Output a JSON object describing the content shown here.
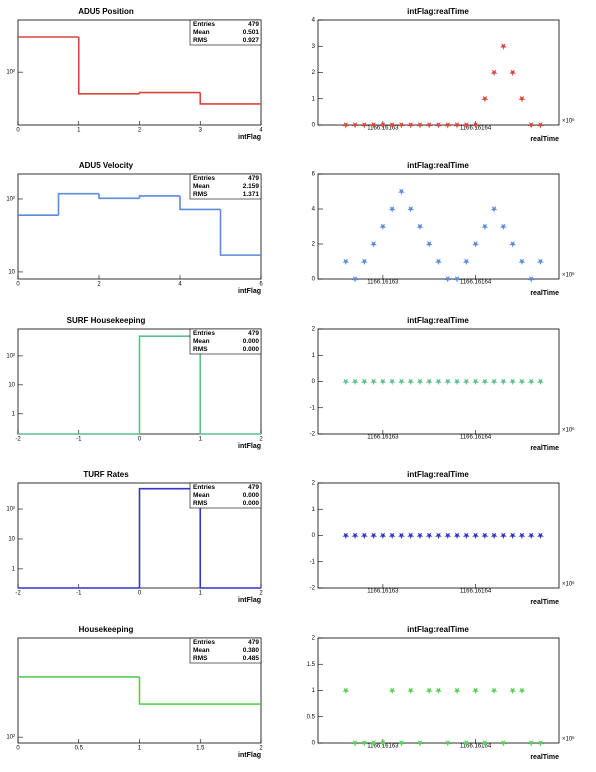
{
  "chart_data": [
    {
      "type": "histogram",
      "title": "ADU5 Position",
      "x_label": "intFlag",
      "bins": [
        0,
        1,
        2,
        3,
        4
      ],
      "values": [
        353,
        46,
        48,
        32
      ],
      "color": "#d9453d",
      "xlim": [
        0,
        4
      ],
      "xticks": [
        0,
        1,
        2,
        3,
        4
      ],
      "log_y": true,
      "ylim": [
        15,
        650
      ],
      "yticks": [
        {
          "value": 100,
          "label": "10²"
        }
      ],
      "stats": {
        "labels": [
          "Entries",
          "Mean",
          "RMS"
        ],
        "values": [
          479,
          0.501,
          0.927
        ]
      }
    },
    {
      "type": "scatter",
      "title": "intFlag:realTime",
      "x_label": "realTime",
      "x_exponent": "×10⁶",
      "color": "#d9453d",
      "x": [
        1166.161626,
        1166.161627,
        1166.161628,
        1166.161629,
        1166.16163,
        1166.161631,
        1166.161632,
        1166.161633,
        1166.161634,
        1166.161635,
        1166.161636,
        1166.161637,
        1166.161638,
        1166.161639,
        1166.16164,
        1166.161641,
        1166.161642,
        1166.161643,
        1166.161644,
        1166.161645,
        1166.161646,
        1166.161647
      ],
      "values": [
        0,
        0,
        0,
        0,
        0,
        0,
        0,
        0,
        0,
        0,
        0,
        0,
        0,
        0,
        0,
        1,
        2,
        3,
        2,
        1,
        0,
        0
      ],
      "xlim": [
        1166.161623,
        1166.161649
      ],
      "xticks": [
        1166.16163,
        1166.16164
      ],
      "ylim": [
        0,
        4
      ],
      "yticks": [
        0,
        1,
        2,
        3,
        4
      ]
    },
    {
      "type": "histogram",
      "title": "ADU5 Velocity",
      "x_label": "intFlag",
      "bins": [
        0,
        1,
        2,
        3,
        4,
        5,
        6
      ],
      "values": [
        60,
        118,
        102,
        110,
        72,
        17
      ],
      "color": "#5b8bd9",
      "xlim": [
        0,
        6
      ],
      "xticks": [
        0,
        2,
        4,
        6
      ],
      "log_y": true,
      "ylim": [
        8,
        220
      ],
      "yticks": [
        10,
        {
          "value": 100,
          "label": "10²"
        }
      ],
      "stats": {
        "labels": [
          "Entries",
          "Mean",
          "RMS"
        ],
        "values": [
          479,
          2.159,
          1.371
        ]
      }
    },
    {
      "type": "scatter",
      "title": "intFlag:realTime",
      "x_label": "realTime",
      "x_exponent": "×10⁶",
      "color": "#5b8bd9",
      "x": [
        1166.161626,
        1166.161627,
        1166.161628,
        1166.161629,
        1166.16163,
        1166.161631,
        1166.161632,
        1166.161633,
        1166.161634,
        1166.161635,
        1166.161636,
        1166.161637,
        1166.161638,
        1166.161639,
        1166.16164,
        1166.161641,
        1166.161642,
        1166.161643,
        1166.161644,
        1166.161645,
        1166.161646,
        1166.161647
      ],
      "values": [
        1,
        0,
        1,
        2,
        3,
        4,
        5,
        4,
        3,
        2,
        1,
        0,
        0,
        1,
        2,
        3,
        4,
        3,
        2,
        1,
        0,
        1
      ],
      "xlim": [
        1166.161623,
        1166.161649
      ],
      "xticks": [
        1166.16163,
        1166.16164
      ],
      "ylim": [
        0,
        6
      ],
      "yticks": [
        0,
        2,
        4,
        6
      ]
    },
    {
      "type": "histogram",
      "title": "SURF Housekeeping",
      "x_label": "intFlag",
      "bins": [
        -2,
        -1,
        0,
        1,
        2
      ],
      "values": [
        0,
        0,
        479,
        0
      ],
      "color": "#5cc08c",
      "xlim": [
        -2,
        2
      ],
      "xticks": [
        -2,
        -1,
        0,
        1,
        2
      ],
      "log_y": true,
      "ylim": [
        0.2,
        850
      ],
      "yticks": [
        1,
        10,
        {
          "value": 100,
          "label": "10²"
        }
      ],
      "stats": {
        "labels": [
          "Entries",
          "Mean",
          "RMS"
        ],
        "values": [
          479,
          0,
          0
        ],
        "value_labels": [
          "479",
          "0.000",
          "0.000"
        ]
      }
    },
    {
      "type": "scatter",
      "title": "intFlag:realTime",
      "x_label": "realTime",
      "x_exponent": "×10⁶",
      "color": "#5cc08c",
      "x": [
        1166.161626,
        1166.161627,
        1166.161628,
        1166.161629,
        1166.16163,
        1166.161631,
        1166.161632,
        1166.161633,
        1166.161634,
        1166.161635,
        1166.161636,
        1166.161637,
        1166.161638,
        1166.161639,
        1166.16164,
        1166.161641,
        1166.161642,
        1166.161643,
        1166.161644,
        1166.161645,
        1166.161646,
        1166.161647
      ],
      "values": [
        0,
        0,
        0,
        0,
        0,
        0,
        0,
        0,
        0,
        0,
        0,
        0,
        0,
        0,
        0,
        0,
        0,
        0,
        0,
        0,
        0,
        0
      ],
      "xlim": [
        1166.161623,
        1166.161649
      ],
      "xticks": [
        1166.16163,
        1166.16164
      ],
      "ylim": [
        -2,
        2
      ],
      "yticks": [
        -2,
        -1,
        0,
        1,
        2
      ]
    },
    {
      "type": "histogram",
      "title": "TURF Rates",
      "x_label": "intFlag",
      "bins": [
        -2,
        -1,
        0,
        1,
        2
      ],
      "values": [
        0,
        0,
        479,
        0
      ],
      "color": "#3434c8",
      "xlim": [
        -2,
        2
      ],
      "xticks": [
        -2,
        -1,
        0,
        1,
        2
      ],
      "log_y": true,
      "ylim": [
        0.23,
        740
      ],
      "yticks": [
        1,
        10,
        {
          "value": 100,
          "label": "10²"
        }
      ],
      "stats": {
        "labels": [
          "Entries",
          "Mean",
          "RMS"
        ],
        "values": [
          479,
          0,
          0
        ],
        "value_labels": [
          "479",
          "0.000",
          "0.000"
        ]
      }
    },
    {
      "type": "scatter",
      "title": "intFlag:realTime",
      "x_label": "realTime",
      "x_exponent": "×10⁶",
      "color": "#3434c8",
      "x": [
        1166.161626,
        1166.161627,
        1166.161628,
        1166.161629,
        1166.16163,
        1166.161631,
        1166.161632,
        1166.161633,
        1166.161634,
        1166.161635,
        1166.161636,
        1166.161637,
        1166.161638,
        1166.161639,
        1166.16164,
        1166.161641,
        1166.161642,
        1166.161643,
        1166.161644,
        1166.161645,
        1166.161646,
        1166.161647
      ],
      "values": [
        0,
        0,
        0,
        0,
        0,
        0,
        0,
        0,
        0,
        0,
        0,
        0,
        0,
        0,
        0,
        0,
        0,
        0,
        0,
        0,
        0,
        0
      ],
      "xlim": [
        1166.161623,
        1166.161649
      ],
      "xticks": [
        1166.16163,
        1166.16164
      ],
      "ylim": [
        -2,
        2
      ],
      "yticks": [
        -2,
        -1,
        0,
        1,
        2
      ]
    },
    {
      "type": "histogram",
      "title": "Housekeeping",
      "x_label": "intFlag",
      "bins": [
        0,
        1,
        2
      ],
      "values": [
        297,
        182
      ],
      "color": "#55d055",
      "xlim": [
        0,
        2
      ],
      "xticks": [
        0,
        0.5,
        1,
        1.5,
        2
      ],
      "log_y": true,
      "ylim": [
        90,
        600
      ],
      "yticks": [
        {
          "value": 100,
          "label": "10²"
        }
      ],
      "stats": {
        "labels": [
          "Entries",
          "Mean",
          "RMS"
        ],
        "values": [
          479,
          0.38,
          0.485
        ],
        "value_labels": [
          "479",
          "0.380",
          "0.485"
        ]
      }
    },
    {
      "type": "scatter",
      "title": "intFlag:realTime",
      "x_label": "realTime",
      "x_exponent": "×10⁶",
      "color": "#55d055",
      "x": [
        1166.161626,
        1166.161627,
        1166.161628,
        1166.161629,
        1166.16163,
        1166.161631,
        1166.161632,
        1166.161633,
        1166.161634,
        1166.161635,
        1166.161636,
        1166.161637,
        1166.161638,
        1166.161639,
        1166.16164,
        1166.161641,
        1166.161642,
        1166.161643,
        1166.161644,
        1166.161645,
        1166.161646,
        1166.161647
      ],
      "values": [
        1,
        0,
        0,
        0,
        0,
        1,
        0,
        1,
        0,
        1,
        1,
        0,
        1,
        0,
        1,
        0,
        1,
        0,
        1,
        1,
        0,
        0
      ],
      "xlim": [
        1166.161623,
        1166.161649
      ],
      "xticks": [
        1166.16163,
        1166.16164
      ],
      "ylim": [
        0,
        2
      ],
      "yticks": [
        0,
        0.5,
        1,
        1.5,
        2
      ]
    }
  ]
}
